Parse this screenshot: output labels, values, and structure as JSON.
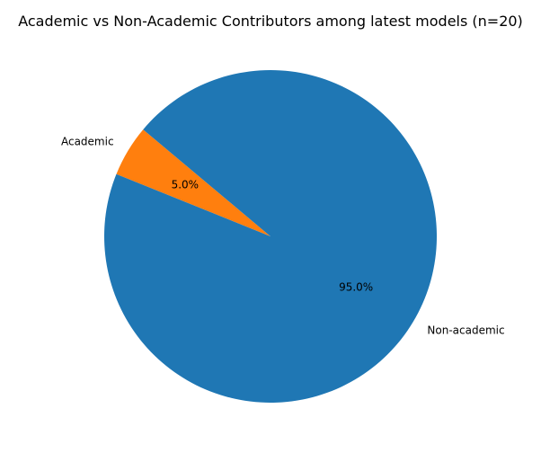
{
  "chart_data": {
    "type": "pie",
    "title": "Academic vs Non-Academic Contributors among latest models (n=20)",
    "slices": [
      {
        "label": "Academic",
        "value": 5.0,
        "pct_label": "5.0%",
        "color": "#ff7f0e"
      },
      {
        "label": "Non-academic",
        "value": 95.0,
        "pct_label": "95.0%",
        "color": "#1f77b4"
      }
    ],
    "start_angle_deg": 140,
    "direction": "counterclockwise"
  }
}
